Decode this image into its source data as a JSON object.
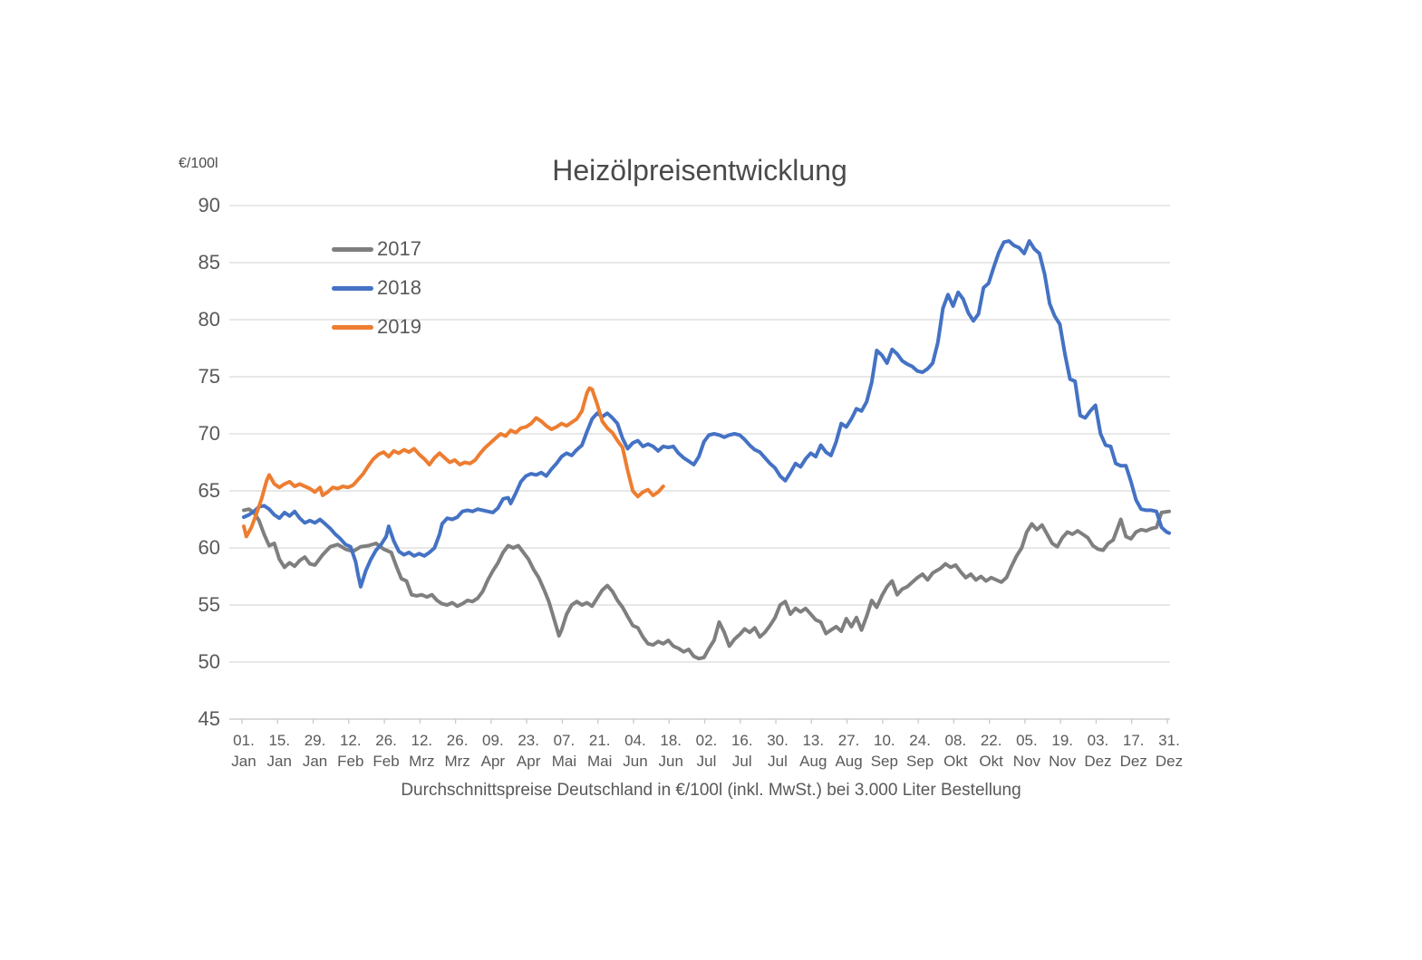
{
  "chart_data": {
    "type": "line",
    "title": "Heizölpreisentwicklung",
    "unit_label": "€/100l",
    "caption": "Durchschnittspreise Deutschland in €/100l (inkl. MwSt.) bei 3.000 Liter Bestellung",
    "y_ticks": [
      90,
      85,
      80,
      75,
      70,
      65,
      60,
      55,
      50,
      45
    ],
    "ylim": [
      45,
      90
    ],
    "grid": true,
    "legend_position": "upper-left-inside",
    "x_tick_interval_days": 14,
    "x_tick_labels": [
      [
        "01.",
        "Jan"
      ],
      [
        "15.",
        "Jan"
      ],
      [
        "29.",
        "Jan"
      ],
      [
        "12.",
        "Feb"
      ],
      [
        "26.",
        "Feb"
      ],
      [
        "12.",
        "Mrz"
      ],
      [
        "26.",
        "Mrz"
      ],
      [
        "09.",
        "Apr"
      ],
      [
        "23.",
        "Apr"
      ],
      [
        "07.",
        "Mai"
      ],
      [
        "21.",
        "Mai"
      ],
      [
        "04.",
        "Jun"
      ],
      [
        "18.",
        "Jun"
      ],
      [
        "02.",
        "Jul"
      ],
      [
        "16.",
        "Jul"
      ],
      [
        "30.",
        "Jul"
      ],
      [
        "13.",
        "Aug"
      ],
      [
        "27.",
        "Aug"
      ],
      [
        "10.",
        "Sep"
      ],
      [
        "24.",
        "Sep"
      ],
      [
        "08.",
        "Okt"
      ],
      [
        "22.",
        "Okt"
      ],
      [
        "05.",
        "Nov"
      ],
      [
        "19.",
        "Nov"
      ],
      [
        "03.",
        "Dez"
      ],
      [
        "17.",
        "Dez"
      ],
      [
        "31.",
        "Dez"
      ]
    ],
    "series": [
      {
        "name": "2017",
        "color": "#7F7F7F",
        "points": [
          0,
          63.3,
          2,
          63.4,
          4,
          63.1,
          6,
          62.4,
          8,
          61.2,
          10,
          60.2,
          12,
          60.4,
          14,
          59.0,
          16,
          58.3,
          18,
          58.7,
          20,
          58.4,
          22,
          58.9,
          24,
          59.2,
          26,
          58.6,
          28,
          58.5,
          31,
          59.4,
          34,
          60.1,
          37,
          60.3,
          40,
          59.9,
          43,
          59.7,
          46,
          60.1,
          49,
          60.2,
          52,
          60.4,
          55,
          59.9,
          58,
          59.6,
          60,
          58.4,
          62,
          57.3,
          64,
          57.1,
          66,
          55.9,
          68,
          55.8,
          70,
          55.9,
          72,
          55.7,
          74,
          55.9,
          76,
          55.4,
          78,
          55.1,
          80,
          55.0,
          82,
          55.2,
          84,
          54.9,
          86,
          55.1,
          88,
          55.4,
          90,
          55.3,
          92,
          55.6,
          94,
          56.2,
          96,
          57.2,
          98,
          58.0,
          100,
          58.7,
          102,
          59.6,
          104,
          60.2,
          106,
          60.0,
          108,
          60.2,
          110,
          59.6,
          112,
          59.0,
          114,
          58.1,
          116,
          57.4,
          118,
          56.4,
          120,
          55.3,
          122,
          53.8,
          124,
          52.3,
          125,
          52.8,
          127,
          54.2,
          129,
          55.0,
          131,
          55.3,
          133,
          55.0,
          135,
          55.2,
          137,
          54.9,
          139,
          55.6,
          141,
          56.3,
          143,
          56.7,
          145,
          56.2,
          147,
          55.4,
          149,
          54.8,
          151,
          54.0,
          153,
          53.2,
          155,
          53.0,
          157,
          52.2,
          159,
          51.6,
          161,
          51.5,
          163,
          51.8,
          165,
          51.6,
          167,
          51.9,
          169,
          51.4,
          171,
          51.2,
          173,
          50.9,
          175,
          51.1,
          177,
          50.5,
          179,
          50.3,
          181,
          50.4,
          183,
          51.2,
          185,
          51.9,
          187,
          53.5,
          189,
          52.6,
          191,
          51.4,
          193,
          52.0,
          195,
          52.4,
          197,
          52.9,
          199,
          52.6,
          201,
          53.0,
          203,
          52.2,
          205,
          52.6,
          207,
          53.2,
          209,
          53.9,
          211,
          55.0,
          213,
          55.3,
          215,
          54.2,
          217,
          54.7,
          219,
          54.4,
          221,
          54.7,
          223,
          54.2,
          225,
          53.7,
          227,
          53.5,
          229,
          52.5,
          231,
          52.8,
          233,
          53.1,
          235,
          52.7,
          237,
          53.8,
          239,
          53.1,
          241,
          53.9,
          243,
          52.8,
          245,
          54.0,
          247,
          55.4,
          249,
          54.8,
          251,
          55.8,
          253,
          56.6,
          255,
          57.1,
          257,
          55.9,
          259,
          56.4,
          261,
          56.6,
          263,
          57.0,
          265,
          57.4,
          267,
          57.7,
          269,
          57.2,
          271,
          57.8,
          274,
          58.2,
          276,
          58.6,
          278,
          58.3,
          280,
          58.5,
          282,
          57.9,
          284,
          57.4,
          286,
          57.7,
          288,
          57.2,
          290,
          57.5,
          292,
          57.1,
          294,
          57.4,
          296,
          57.2,
          298,
          57.0,
          300,
          57.4,
          302,
          58.4,
          304,
          59.3,
          306,
          60.0,
          308,
          61.4,
          310,
          62.1,
          312,
          61.6,
          314,
          62.0,
          316,
          61.2,
          318,
          60.4,
          320,
          60.1,
          322,
          60.9,
          324,
          61.4,
          326,
          61.2,
          328,
          61.5,
          330,
          61.2,
          332,
          60.9,
          334,
          60.2,
          336,
          59.9,
          338,
          59.8,
          340,
          60.4,
          342,
          60.7,
          344,
          61.9,
          345,
          62.5,
          347,
          61.0,
          349,
          60.8,
          351,
          61.4,
          353,
          61.6,
          355,
          61.5,
          357,
          61.7,
          359,
          61.8,
          361,
          63.1,
          364,
          63.2
        ]
      },
      {
        "name": "2018",
        "color": "#4472C4",
        "points": [
          0,
          62.7,
          2,
          62.9,
          4,
          63.2,
          6,
          63.6,
          8,
          63.7,
          10,
          63.4,
          12,
          62.9,
          14,
          62.6,
          16,
          63.1,
          18,
          62.8,
          20,
          63.2,
          22,
          62.6,
          24,
          62.2,
          26,
          62.4,
          28,
          62.2,
          30,
          62.5,
          32,
          62.1,
          34,
          61.7,
          36,
          61.2,
          38,
          60.8,
          40,
          60.3,
          42,
          60.1,
          44,
          58.8,
          45,
          57.6,
          46,
          56.6,
          48,
          58.0,
          50,
          59.0,
          52,
          59.8,
          54,
          60.3,
          56,
          61.0,
          57,
          61.9,
          59,
          60.6,
          61,
          59.7,
          63,
          59.4,
          65,
          59.6,
          67,
          59.3,
          69,
          59.5,
          71,
          59.3,
          73,
          59.6,
          75,
          60.0,
          77,
          61.2,
          78,
          62.1,
          80,
          62.6,
          82,
          62.5,
          84,
          62.7,
          86,
          63.2,
          88,
          63.3,
          90,
          63.2,
          92,
          63.4,
          94,
          63.3,
          96,
          63.2,
          98,
          63.1,
          100,
          63.5,
          102,
          64.3,
          104,
          64.4,
          105,
          63.9,
          107,
          64.8,
          109,
          65.8,
          111,
          66.3,
          113,
          66.5,
          115,
          66.4,
          117,
          66.6,
          119,
          66.3,
          121,
          66.9,
          123,
          67.4,
          125,
          68.0,
          127,
          68.3,
          129,
          68.1,
          131,
          68.6,
          133,
          69.0,
          135,
          70.2,
          137,
          71.3,
          139,
          71.8,
          141,
          71.5,
          143,
          71.8,
          145,
          71.4,
          147,
          70.9,
          149,
          69.6,
          151,
          68.7,
          153,
          69.2,
          155,
          69.4,
          157,
          68.9,
          159,
          69.1,
          161,
          68.9,
          163,
          68.5,
          165,
          68.9,
          167,
          68.8,
          169,
          68.9,
          171,
          68.3,
          173,
          67.9,
          175,
          67.6,
          177,
          67.3,
          179,
          68.0,
          181,
          69.3,
          183,
          69.9,
          185,
          70.0,
          187,
          69.9,
          189,
          69.7,
          191,
          69.9,
          193,
          70.0,
          195,
          69.9,
          197,
          69.5,
          199,
          69.0,
          201,
          68.6,
          203,
          68.4,
          205,
          67.9,
          207,
          67.4,
          209,
          67.0,
          211,
          66.3,
          213,
          65.9,
          215,
          66.6,
          217,
          67.4,
          219,
          67.1,
          221,
          67.8,
          223,
          68.3,
          225,
          68.0,
          227,
          69.0,
          229,
          68.4,
          231,
          68.1,
          233,
          69.3,
          235,
          70.9,
          237,
          70.6,
          239,
          71.3,
          241,
          72.2,
          243,
          72.0,
          245,
          72.8,
          247,
          74.5,
          249,
          77.3,
          251,
          76.9,
          253,
          76.2,
          255,
          77.4,
          257,
          77.0,
          259,
          76.4,
          261,
          76.1,
          263,
          75.9,
          265,
          75.5,
          267,
          75.4,
          269,
          75.7,
          271,
          76.2,
          273,
          78.0,
          275,
          81.0,
          277,
          82.2,
          279,
          81.2,
          281,
          82.4,
          283,
          81.8,
          285,
          80.6,
          287,
          79.9,
          289,
          80.5,
          291,
          82.8,
          293,
          83.2,
          295,
          84.6,
          297,
          85.9,
          299,
          86.8,
          301,
          86.9,
          303,
          86.5,
          305,
          86.3,
          307,
          85.8,
          309,
          86.9,
          311,
          86.2,
          313,
          85.8,
          315,
          84.0,
          317,
          81.4,
          319,
          80.3,
          321,
          79.6,
          323,
          77.0,
          325,
          74.8,
          327,
          74.6,
          329,
          71.6,
          331,
          71.4,
          333,
          72.0,
          335,
          72.5,
          337,
          70.0,
          339,
          69.0,
          341,
          68.9,
          343,
          67.4,
          345,
          67.2,
          347,
          67.2,
          349,
          65.8,
          351,
          64.2,
          353,
          63.4,
          355,
          63.3,
          357,
          63.3,
          359,
          63.2,
          361,
          61.8,
          363,
          61.4,
          364,
          61.3
        ]
      },
      {
        "name": "2019",
        "color": "#ED7D31",
        "points": [
          0,
          61.9,
          1,
          61.0,
          3,
          61.8,
          5,
          63.0,
          7,
          64.3,
          9,
          65.9,
          10,
          66.4,
          12,
          65.6,
          14,
          65.3,
          16,
          65.6,
          18,
          65.8,
          20,
          65.4,
          22,
          65.6,
          24,
          65.4,
          26,
          65.2,
          28,
          64.9,
          30,
          65.3,
          31,
          64.6,
          33,
          64.9,
          35,
          65.3,
          37,
          65.2,
          39,
          65.4,
          41,
          65.3,
          43,
          65.5,
          45,
          66.0,
          47,
          66.5,
          49,
          67.2,
          51,
          67.8,
          53,
          68.2,
          55,
          68.4,
          57,
          68.0,
          59,
          68.5,
          61,
          68.3,
          63,
          68.6,
          65,
          68.4,
          67,
          68.7,
          69,
          68.2,
          71,
          67.8,
          73,
          67.3,
          75,
          67.9,
          77,
          68.3,
          79,
          67.9,
          81,
          67.5,
          83,
          67.7,
          85,
          67.3,
          87,
          67.5,
          89,
          67.4,
          91,
          67.7,
          93,
          68.3,
          95,
          68.8,
          97,
          69.2,
          99,
          69.6,
          101,
          70.0,
          103,
          69.8,
          105,
          70.3,
          107,
          70.1,
          109,
          70.5,
          111,
          70.6,
          113,
          70.9,
          115,
          71.4,
          117,
          71.1,
          119,
          70.7,
          121,
          70.4,
          123,
          70.6,
          125,
          70.9,
          127,
          70.7,
          129,
          71.0,
          131,
          71.3,
          133,
          72.0,
          135,
          73.6,
          136,
          74.0,
          137,
          73.9,
          139,
          72.6,
          141,
          71.1,
          143,
          70.5,
          145,
          70.1,
          147,
          69.4,
          149,
          68.8,
          151,
          66.8,
          153,
          65.0,
          155,
          64.5,
          157,
          64.9,
          159,
          65.1,
          161,
          64.6,
          163,
          64.9,
          165,
          65.4
        ]
      }
    ]
  },
  "colors": {
    "gridline": "#D9D9D9",
    "axis": "#C9C9C9",
    "tick_text": "#595959",
    "title_text": "#4A4A4A"
  }
}
